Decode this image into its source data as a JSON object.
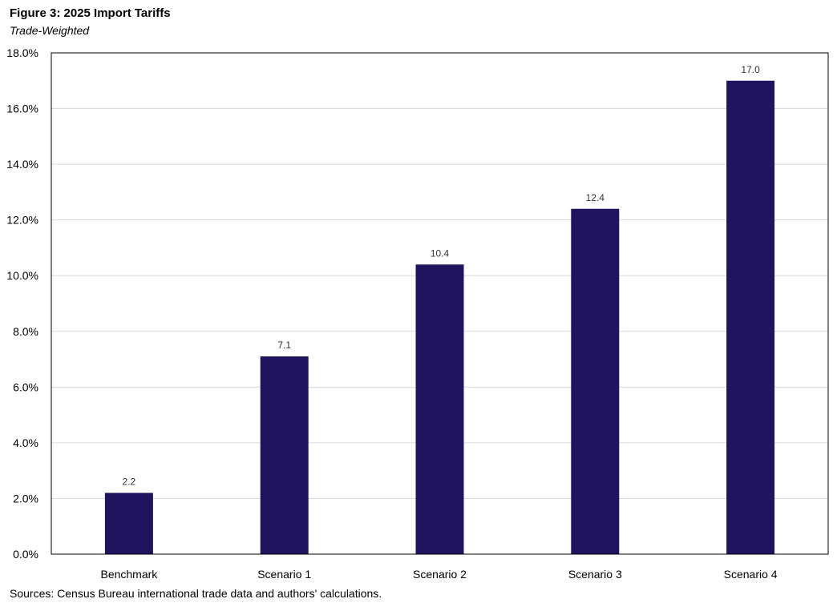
{
  "header": {
    "title": "Figure 3: 2025 Import Tariffs",
    "subtitle": "Trade-Weighted"
  },
  "footer": {
    "source": "Sources: Census Bureau international trade data and authors' calculations."
  },
  "chart_data": {
    "type": "bar",
    "title": "Figure 3: 2025 Import Tariffs",
    "subtitle": "Trade-Weighted",
    "categories": [
      "Benchmark",
      "Scenario 1",
      "Scenario 2",
      "Scenario 3",
      "Scenario 4"
    ],
    "values": [
      2.2,
      7.1,
      10.4,
      12.4,
      17.0
    ],
    "data_labels": [
      "2.2",
      "7.1",
      "10.4",
      "12.4",
      "17.0"
    ],
    "ylim": [
      0,
      18
    ],
    "yticks": [
      0,
      2,
      4,
      6,
      8,
      10,
      12,
      14,
      16,
      18
    ],
    "ytick_labels": [
      "0.0%",
      "2.0%",
      "4.0%",
      "6.0%",
      "8.0%",
      "10.0%",
      "12.0%",
      "14.0%",
      "16.0%",
      "18.0%"
    ],
    "xlabel": "",
    "ylabel": "",
    "grid": true,
    "legend": "none",
    "bar_color": "#21145f",
    "grid_color": "#d9d9d9"
  }
}
